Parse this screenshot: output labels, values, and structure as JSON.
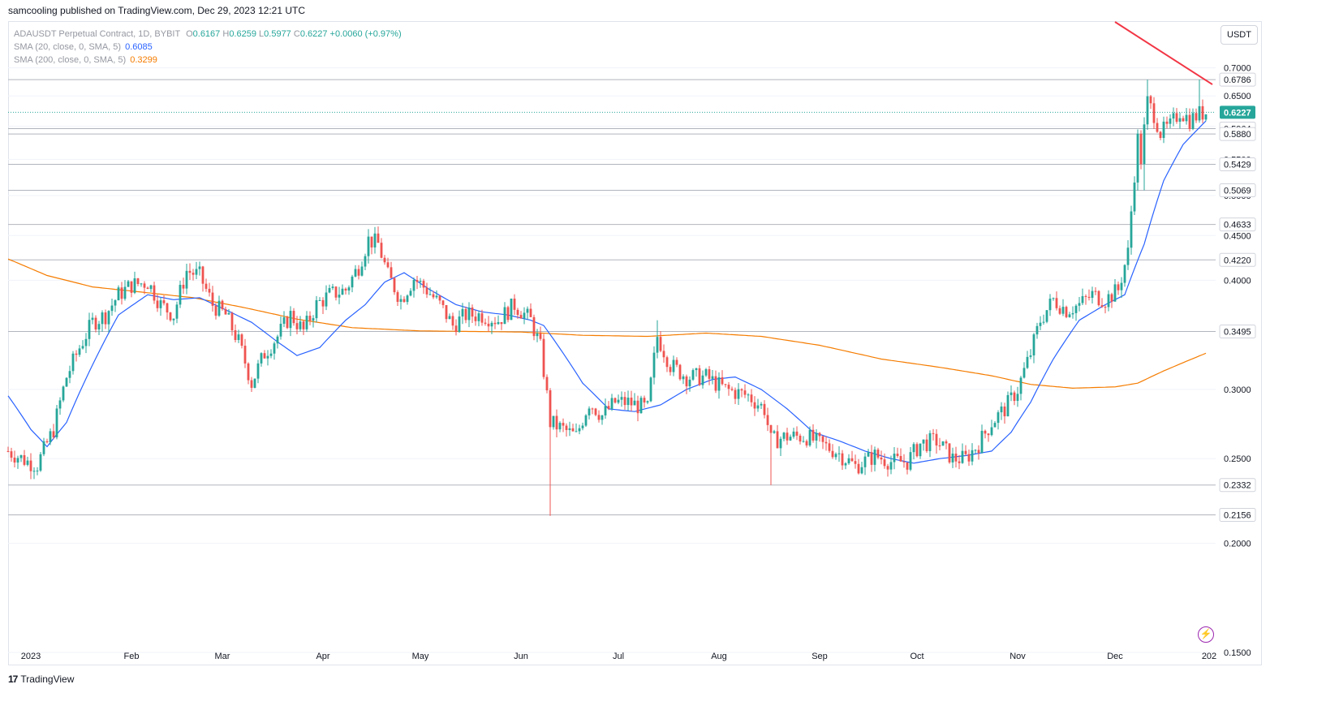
{
  "header": {
    "publisher_text": "samcooling published on TradingView.com, Dec 29, 2023 12:21 UTC"
  },
  "legend": {
    "symbol_text": "ADAUSDT Perpetual Contract, 1D, BYBIT",
    "o_label": "O",
    "o_value": "0.6167",
    "h_label": "H",
    "h_value": "0.6259",
    "l_label": "L",
    "l_value": "0.5977",
    "c_label": "C",
    "c_value": "0.6227",
    "change": "+0.0060 (+0.97%)",
    "sma20_label": "SMA (20, close, 0, SMA, 5)",
    "sma20_value": "0.6085",
    "sma200_label": "SMA (200, close, 0, SMA, 5)",
    "sma200_value": "0.3299"
  },
  "unit_button": "USDT",
  "footer": {
    "brand": "TradingView",
    "logo": "17"
  },
  "colors": {
    "up": "#26a69a",
    "down": "#ef5350",
    "sma20": "#2962ff",
    "sma200": "#f57c00",
    "trendline": "#f23645",
    "hline": "#b2b5be",
    "grid": "#f0f3fa"
  },
  "chart_data": {
    "type": "candlestick",
    "symbol": "ADAUSDT Perpetual Contract",
    "interval": "1D",
    "exchange": "BYBIT",
    "y_scale": "log",
    "ylim": [
      0.145,
      0.79
    ],
    "y_ticks": [
      "0.7000",
      "0.6500",
      "0.6000",
      "0.5500",
      "0.5000",
      "0.4500",
      "0.4000",
      "0.3000",
      "0.2500",
      "0.2000",
      "0.1500"
    ],
    "x_ticks": [
      "2023",
      "Feb",
      "Mar",
      "Apr",
      "May",
      "Jun",
      "Jul",
      "Aug",
      "Sep",
      "Oct",
      "Nov",
      "Dec",
      "202"
    ],
    "x_start": "2022-12-25",
    "x_end": "2024-01-01",
    "last_close": 0.6227,
    "horizontal_levels": [
      0.6786,
      0.5964,
      0.588,
      0.5429,
      0.5069,
      0.4633,
      0.422,
      0.3495,
      0.2332,
      0.2156
    ],
    "level_labels": [
      "0.6786",
      "0.5964",
      "0.5880",
      "0.5429",
      "0.5069",
      "0.4633",
      "0.4220",
      "0.3495",
      "0.2332",
      "0.2156"
    ],
    "last_close_label": "0.6227",
    "trendline": [
      {
        "date": "2023-12-01",
        "price": 0.79
      },
      {
        "date": "2023-12-31",
        "price": 0.67
      }
    ],
    "sma20_key": [
      [
        "2022-12-25",
        0.295
      ],
      [
        "2023-01-01",
        0.27
      ],
      [
        "2023-01-06",
        0.258
      ],
      [
        "2023-01-12",
        0.275
      ],
      [
        "2023-01-20",
        0.32
      ],
      [
        "2023-01-28",
        0.365
      ],
      [
        "2023-02-06",
        0.385
      ],
      [
        "2023-02-14",
        0.38
      ],
      [
        "2023-02-22",
        0.382
      ],
      [
        "2023-03-02",
        0.37
      ],
      [
        "2023-03-10",
        0.358
      ],
      [
        "2023-03-18",
        0.34
      ],
      [
        "2023-03-24",
        0.328
      ],
      [
        "2023-03-31",
        0.335
      ],
      [
        "2023-04-08",
        0.36
      ],
      [
        "2023-04-14",
        0.375
      ],
      [
        "2023-04-20",
        0.398
      ],
      [
        "2023-04-26",
        0.408
      ],
      [
        "2023-05-04",
        0.39
      ],
      [
        "2023-05-12",
        0.375
      ],
      [
        "2023-05-20",
        0.368
      ],
      [
        "2023-05-28",
        0.365
      ],
      [
        "2023-06-04",
        0.36
      ],
      [
        "2023-06-08",
        0.355
      ],
      [
        "2023-06-14",
        0.33
      ],
      [
        "2023-06-20",
        0.305
      ],
      [
        "2023-06-28",
        0.285
      ],
      [
        "2023-07-06",
        0.283
      ],
      [
        "2023-07-14",
        0.288
      ],
      [
        "2023-07-22",
        0.3
      ],
      [
        "2023-07-30",
        0.308
      ],
      [
        "2023-08-06",
        0.31
      ],
      [
        "2023-08-14",
        0.3
      ],
      [
        "2023-08-22",
        0.285
      ],
      [
        "2023-08-30",
        0.268
      ],
      [
        "2023-09-07",
        0.262
      ],
      [
        "2023-09-15",
        0.255
      ],
      [
        "2023-09-23",
        0.25
      ],
      [
        "2023-09-30",
        0.247
      ],
      [
        "2023-10-08",
        0.25
      ],
      [
        "2023-10-16",
        0.252
      ],
      [
        "2023-10-24",
        0.255
      ],
      [
        "2023-10-30",
        0.268
      ],
      [
        "2023-11-05",
        0.29
      ],
      [
        "2023-11-12",
        0.325
      ],
      [
        "2023-11-20",
        0.36
      ],
      [
        "2023-11-28",
        0.375
      ],
      [
        "2023-12-04",
        0.385
      ],
      [
        "2023-12-10",
        0.44
      ],
      [
        "2023-12-16",
        0.52
      ],
      [
        "2023-12-22",
        0.572
      ],
      [
        "2023-12-29",
        0.6085
      ]
    ],
    "sma200_key": [
      [
        "2022-12-25",
        0.423
      ],
      [
        "2023-01-06",
        0.405
      ],
      [
        "2023-01-20",
        0.393
      ],
      [
        "2023-02-06",
        0.387
      ],
      [
        "2023-02-20",
        0.382
      ],
      [
        "2023-03-08",
        0.372
      ],
      [
        "2023-03-24",
        0.361
      ],
      [
        "2023-04-10",
        0.353
      ],
      [
        "2023-05-01",
        0.35
      ],
      [
        "2023-06-01",
        0.349
      ],
      [
        "2023-06-20",
        0.346
      ],
      [
        "2023-07-10",
        0.345
      ],
      [
        "2023-07-28",
        0.348
      ],
      [
        "2023-08-14",
        0.345
      ],
      [
        "2023-09-01",
        0.337
      ],
      [
        "2023-09-20",
        0.325
      ],
      [
        "2023-10-08",
        0.318
      ],
      [
        "2023-10-24",
        0.311
      ],
      [
        "2023-11-05",
        0.304
      ],
      [
        "2023-11-18",
        0.301
      ],
      [
        "2023-12-01",
        0.302
      ],
      [
        "2023-12-08",
        0.305
      ],
      [
        "2023-12-16",
        0.315
      ],
      [
        "2023-12-29",
        0.33
      ]
    ],
    "close_key": [
      [
        "2022-12-25",
        0.255
      ],
      [
        "2022-12-31",
        0.248
      ],
      [
        "2023-01-03",
        0.246
      ],
      [
        "2023-01-08",
        0.27
      ],
      [
        "2023-01-12",
        0.31
      ],
      [
        "2023-01-16",
        0.335
      ],
      [
        "2023-01-20",
        0.358
      ],
      [
        "2023-01-24",
        0.365
      ],
      [
        "2023-01-28",
        0.385
      ],
      [
        "2023-02-01",
        0.395
      ],
      [
        "2023-02-06",
        0.398
      ],
      [
        "2023-02-10",
        0.375
      ],
      [
        "2023-02-14",
        0.365
      ],
      [
        "2023-02-18",
        0.41
      ],
      [
        "2023-02-22",
        0.405
      ],
      [
        "2023-02-26",
        0.375
      ],
      [
        "2023-03-02",
        0.365
      ],
      [
        "2023-03-06",
        0.34
      ],
      [
        "2023-03-10",
        0.305
      ],
      [
        "2023-03-14",
        0.33
      ],
      [
        "2023-03-18",
        0.345
      ],
      [
        "2023-03-22",
        0.365
      ],
      [
        "2023-03-26",
        0.35
      ],
      [
        "2023-03-30",
        0.375
      ],
      [
        "2023-04-03",
        0.385
      ],
      [
        "2023-04-08",
        0.39
      ],
      [
        "2023-04-12",
        0.415
      ],
      [
        "2023-04-15",
        0.445
      ],
      [
        "2023-04-18",
        0.44
      ],
      [
        "2023-04-21",
        0.405
      ],
      [
        "2023-04-25",
        0.38
      ],
      [
        "2023-04-29",
        0.402
      ],
      [
        "2023-05-03",
        0.39
      ],
      [
        "2023-05-07",
        0.375
      ],
      [
        "2023-05-11",
        0.355
      ],
      [
        "2023-05-15",
        0.365
      ],
      [
        "2023-05-20",
        0.365
      ],
      [
        "2023-05-25",
        0.36
      ],
      [
        "2023-05-30",
        0.375
      ],
      [
        "2023-06-04",
        0.36
      ],
      [
        "2023-06-07",
        0.335
      ],
      [
        "2023-06-10",
        0.275
      ],
      [
        "2023-06-14",
        0.27
      ],
      [
        "2023-06-18",
        0.265
      ],
      [
        "2023-06-22",
        0.29
      ],
      [
        "2023-06-26",
        0.28
      ],
      [
        "2023-06-30",
        0.29
      ],
      [
        "2023-07-04",
        0.29
      ],
      [
        "2023-07-10",
        0.285
      ],
      [
        "2023-07-13",
        0.345
      ],
      [
        "2023-07-17",
        0.32
      ],
      [
        "2023-07-22",
        0.31
      ],
      [
        "2023-07-28",
        0.31
      ],
      [
        "2023-08-03",
        0.3
      ],
      [
        "2023-08-10",
        0.295
      ],
      [
        "2023-08-15",
        0.285
      ],
      [
        "2023-08-17",
        0.262
      ],
      [
        "2023-08-22",
        0.265
      ],
      [
        "2023-08-28",
        0.265
      ],
      [
        "2023-09-01",
        0.26
      ],
      [
        "2023-09-06",
        0.255
      ],
      [
        "2023-09-12",
        0.245
      ],
      [
        "2023-09-18",
        0.252
      ],
      [
        "2023-09-23",
        0.248
      ],
      [
        "2023-09-28",
        0.248
      ],
      [
        "2023-10-02",
        0.26
      ],
      [
        "2023-10-07",
        0.262
      ],
      [
        "2023-10-12",
        0.25
      ],
      [
        "2023-10-16",
        0.25
      ],
      [
        "2023-10-20",
        0.26
      ],
      [
        "2023-10-24",
        0.275
      ],
      [
        "2023-10-28",
        0.285
      ],
      [
        "2023-11-01",
        0.3
      ],
      [
        "2023-11-05",
        0.33
      ],
      [
        "2023-11-08",
        0.36
      ],
      [
        "2023-11-12",
        0.38
      ],
      [
        "2023-11-16",
        0.37
      ],
      [
        "2023-11-20",
        0.375
      ],
      [
        "2023-11-24",
        0.385
      ],
      [
        "2023-11-28",
        0.38
      ],
      [
        "2023-12-02",
        0.39
      ],
      [
        "2023-12-05",
        0.43
      ],
      [
        "2023-12-08",
        0.58
      ],
      [
        "2023-12-09",
        0.55
      ],
      [
        "2023-12-11",
        0.64
      ],
      [
        "2023-12-13",
        0.62
      ],
      [
        "2023-12-15",
        0.59
      ],
      [
        "2023-12-18",
        0.6
      ],
      [
        "2023-12-21",
        0.625
      ],
      [
        "2023-12-24",
        0.61
      ],
      [
        "2023-12-27",
        0.62
      ],
      [
        "2023-12-29",
        0.6227
      ]
    ],
    "extreme_wicks": [
      [
        "2023-06-10",
        "low",
        0.215
      ],
      [
        "2023-08-17",
        "low",
        0.2332
      ],
      [
        "2023-12-10",
        "low",
        0.507
      ],
      [
        "2023-12-11",
        "high",
        0.6786
      ],
      [
        "2023-12-27",
        "high",
        0.6786
      ],
      [
        "2023-07-13",
        "high",
        0.36
      ]
    ]
  }
}
